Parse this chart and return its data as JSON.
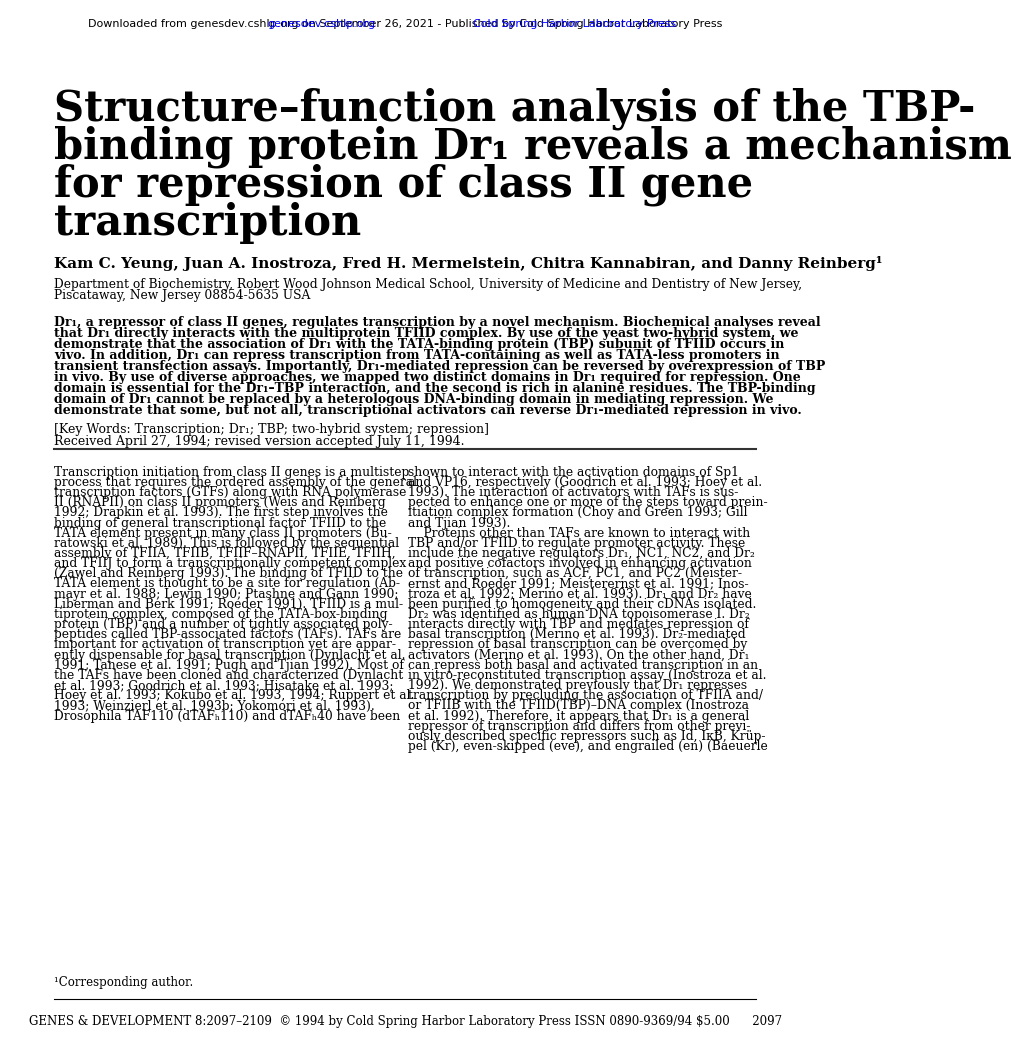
{
  "bg_color": "#ffffff",
  "header_link1": "genesdev.cshlp.org",
  "header_link2": "Cold Spring Harbor Laboratory Press",
  "header_pre": "Downloaded from ",
  "header_mid": " on September 26, 2021 - Published by ",
  "title_line1": "Structure–function analysis of the TBP-",
  "title_line2": "binding protein Dr₁ reveals a mechanism",
  "title_line3": "for repression of class II gene",
  "title_line4": "transcription",
  "authors": "Kam C. Yeung, Juan A. Inostroza, Fred H. Mermelstein, Chitra Kannabiran, and Danny Reinberg¹",
  "affiliation1": "Department of Biochemistry, Robert Wood Johnson Medical School, University of Medicine and Dentistry of New Jersey,",
  "affiliation2": "Piscataway, New Jersey 08854-5635 USA",
  "abstract_lines": [
    "Dr₁, a repressor of class II genes, regulates transcription by a novel mechanism. Biochemical analyses reveal",
    "that Dr₁ directly interacts with the multiprotein TFIID complex. By use of the yeast two-hybrid system, we",
    "demonstrate that the association of Dr₁ with the TATA-binding protein (TBP) subunit of TFIID occurs in",
    "vivo. In addition, Dr₁ can repress transcription from TATA-containing as well as TATA-less promoters in",
    "transient transfection assays. Importantly, Dr₁-mediated repression can be reversed by overexpression of TBP",
    "in vivo. By use of diverse approaches, we mapped two distinct domains in Dr₁ required for repression. One",
    "domain is essential for the Dr₁–TBP interaction, and the second is rich in alanine residues. The TBP-binding",
    "domain of Dr₁ cannot be replaced by a heterologous DNA-binding domain in mediating repression. We",
    "demonstrate that some, but not all, transcriptional activators can reverse Dr₁-mediated repression in vivo."
  ],
  "keywords": "[Key Words: Transcription; Dr₁; TBP; two-hybrid system; repression]",
  "received": "Received April 27, 1994; revised version accepted July 11, 1994.",
  "body_col1_lines": [
    "Transcription initiation from class II genes is a multistep",
    "process that requires the ordered assembly of the general",
    "transcription factors (GTFs) along with RNA polymerase",
    "II (RNAPII) on class II promoters (Weis and Reinberg",
    "1992; Drapkin et al. 1993). The first step involves the",
    "binding of general transcriptional factor TFIID to the",
    "TATA element present in many class II promoters (Bu-",
    "ratowski et al. 1989). This is followed by the sequential",
    "assembly of TFIIA, TFIIB, TFIIF–RNAPII, TFIIE, TFIIH,",
    "and TFIIJ to form a transcriptionally competent complex",
    "(Zawel and Reinberg 1993). The binding of TFIID to the",
    "TATA element is thought to be a site for regulation (Ab-",
    "mayr et al. 1988; Lewin 1990; Ptashne and Gann 1990;",
    "Liberman and Berk 1991; Roeder 1991). TFIID is a mul-",
    "tiprotein complex, composed of the TATA-box-binding",
    "protein (TBP) and a number of tightly associated poly-",
    "peptides called TBP-associated factors (TAFs). TAFs are",
    "important for activation of transcription yet are appar-",
    "ently dispensable for basal transcription (Dynlacht et al.",
    "1991; Tanese et al. 1991; Pugh and Tjian 1992). Most of",
    "the TAFs have been cloned and characterized (Dynlacht",
    "et al. 1993; Goodrich et al. 1993; Hisatake et al. 1993;",
    "Hoey et al. 1993; Kokubo et al. 1993, 1994; Ruppert et al.",
    "1993; Weinzierl et al. 1993b; Yokomori et al. 1993).",
    "Drosophila TAF110 (dTAFₕ110) and dTAFₕ40 have been"
  ],
  "body_col2_lines": [
    "shown to interact with the activation domains of Sp1",
    "and VP16, respectively (Goodrich et al. 1993; Hoey et al.",
    "1993). The interaction of activators with TAFs is sus-",
    "pected to enhance one or more of the steps toward prein-",
    "itiation complex formation (Choy and Green 1993; Gill",
    "and Tjian 1993).",
    "    Proteins other than TAFs are known to interact with",
    "TBP and/or TFIID to regulate promoter activity. These",
    "include the negative regulators Dr₁, NC1, NC2, and Dr₂",
    "and positive cofactors involved in enhancing activation",
    "of transcription, such as ACF, PC1, and PC2 (Meister-",
    "ernst and Roeder 1991; Meisterernst et al. 1991; Inos-",
    "troza et al. 1992; Merino et al. 1993). Dr₁ and Dr₂ have",
    "been purified to homogeneity and their cDNAs isolated.",
    "Dr₂ was identified as human DNA topoisomerase I. Dr₂",
    "interacts directly with TBP and mediates repression of",
    "basal transcription (Merino et al. 1993). Dr₂-mediated",
    "repression of basal transcription can be overcomed by",
    "activators (Merino et al. 1993). On the other hand, Dr₁",
    "can repress both basal and activated transcription in an",
    "in vitro-reconstituted transcription assay (Inostroza et al.",
    "1992). We demonstrated previously that Dr₁ represses",
    "transcription by precluding the association of TFIIA and/",
    "or TFIIB with the TFIID(TBP)–DNA complex (Inostroza",
    "et al. 1992). Therefore, it appears that Dr₁ is a general",
    "repressor of transcription and differs from other previ-",
    "ously described specific repressors such as Id, IκB, Krüp-",
    "pel (Kr), even-skipped (eve), and engrailed (en) (Baeuerle"
  ],
  "footnote": "¹Corresponding author.",
  "footer": "GENES & DEVELOPMENT 8:2097–2109  © 1994 by Cold Spring Harbor Laboratory Press ISSN 0890-9369/94 $5.00      2097"
}
